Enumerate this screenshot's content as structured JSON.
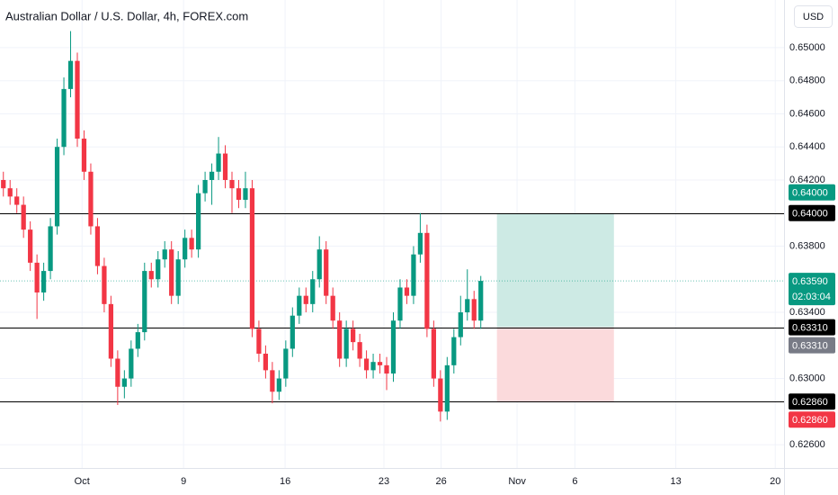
{
  "chart_data": {
    "type": "candlestick",
    "title": "Australian Dollar / U.S. Dollar, 4h, FOREX.com",
    "currency": "USD",
    "up_color": "#089981",
    "down_color": "#f23645",
    "x": [
      0,
      1,
      2,
      3,
      4,
      5,
      6,
      7,
      8,
      9,
      10,
      11,
      12,
      13,
      14,
      15,
      16,
      17,
      18,
      19,
      20,
      21,
      22,
      23,
      24,
      25,
      26,
      27,
      28,
      29,
      30,
      31,
      32,
      33,
      34,
      35,
      36,
      37,
      38,
      39,
      40,
      41,
      42,
      43,
      44,
      45,
      46,
      47,
      48,
      49,
      50,
      51,
      52,
      53,
      54,
      55,
      56,
      57,
      58,
      59,
      60,
      61,
      62,
      63,
      64,
      65,
      66,
      67,
      68,
      69,
      70,
      71
    ],
    "open": [
      0.642,
      0.6415,
      0.641,
      0.6405,
      0.639,
      0.637,
      0.6352,
      0.6365,
      0.6392,
      0.644,
      0.6475,
      0.6492,
      0.6445,
      0.6425,
      0.6392,
      0.6368,
      0.6345,
      0.6312,
      0.6295,
      0.63,
      0.6318,
      0.6328,
      0.6365,
      0.636,
      0.6372,
      0.6378,
      0.635,
      0.6372,
      0.6385,
      0.6378,
      0.6412,
      0.642,
      0.6425,
      0.6436,
      0.642,
      0.6415,
      0.6408,
      0.6415,
      0.633,
      0.6315,
      0.6305,
      0.6292,
      0.63,
      0.6318,
      0.6338,
      0.635,
      0.6345,
      0.636,
      0.6378,
      0.635,
      0.6335,
      0.6312,
      0.633,
      0.6322,
      0.6312,
      0.6305,
      0.631,
      0.6308,
      0.6303,
      0.6335,
      0.6355,
      0.635,
      0.6375,
      0.6388,
      0.633,
      0.63,
      0.628,
      0.6308,
      0.6325,
      0.634,
      0.6348,
      0.6335
    ],
    "high": [
      0.6425,
      0.642,
      0.6415,
      0.641,
      0.6395,
      0.6375,
      0.637,
      0.6397,
      0.6445,
      0.6482,
      0.651,
      0.6497,
      0.645,
      0.643,
      0.6397,
      0.6373,
      0.635,
      0.6317,
      0.6305,
      0.6323,
      0.6333,
      0.637,
      0.637,
      0.6377,
      0.6383,
      0.6383,
      0.6377,
      0.639,
      0.639,
      0.6417,
      0.6425,
      0.643,
      0.6446,
      0.6441,
      0.6425,
      0.642,
      0.6425,
      0.642,
      0.6335,
      0.632,
      0.631,
      0.6305,
      0.6323,
      0.6343,
      0.6355,
      0.6355,
      0.6365,
      0.6386,
      0.6383,
      0.6355,
      0.634,
      0.6335,
      0.6335,
      0.6327,
      0.6317,
      0.6315,
      0.6315,
      0.6313,
      0.634,
      0.636,
      0.636,
      0.638,
      0.64,
      0.6393,
      0.6335,
      0.6305,
      0.6313,
      0.633,
      0.635,
      0.6366,
      0.6353,
      0.6362
    ],
    "low": [
      0.641,
      0.6405,
      0.64,
      0.6385,
      0.6365,
      0.6336,
      0.6347,
      0.636,
      0.6387,
      0.6435,
      0.647,
      0.644,
      0.642,
      0.6387,
      0.6363,
      0.634,
      0.6307,
      0.6284,
      0.6288,
      0.6295,
      0.6313,
      0.6323,
      0.6355,
      0.6355,
      0.6367,
      0.6345,
      0.6345,
      0.6367,
      0.6373,
      0.6373,
      0.6407,
      0.6405,
      0.642,
      0.6415,
      0.64,
      0.6403,
      0.6403,
      0.6325,
      0.631,
      0.63,
      0.6285,
      0.6287,
      0.6295,
      0.6313,
      0.6333,
      0.634,
      0.634,
      0.6355,
      0.6345,
      0.633,
      0.6307,
      0.6307,
      0.6317,
      0.6307,
      0.63,
      0.63,
      0.6303,
      0.6293,
      0.6298,
      0.633,
      0.6345,
      0.6345,
      0.637,
      0.6325,
      0.6295,
      0.6274,
      0.6275,
      0.6303,
      0.632,
      0.6335,
      0.633,
      0.633
    ],
    "close": [
      0.6415,
      0.641,
      0.6405,
      0.639,
      0.637,
      0.6352,
      0.6365,
      0.6392,
      0.644,
      0.6475,
      0.6492,
      0.6445,
      0.6425,
      0.6392,
      0.6368,
      0.6345,
      0.6312,
      0.6295,
      0.63,
      0.6318,
      0.6328,
      0.6365,
      0.636,
      0.6372,
      0.6378,
      0.635,
      0.6372,
      0.6385,
      0.6378,
      0.6412,
      0.642,
      0.6425,
      0.6436,
      0.642,
      0.6415,
      0.6408,
      0.6415,
      0.633,
      0.6315,
      0.6305,
      0.6292,
      0.63,
      0.6318,
      0.6338,
      0.635,
      0.6345,
      0.636,
      0.6378,
      0.635,
      0.6335,
      0.6312,
      0.633,
      0.6322,
      0.6312,
      0.6305,
      0.631,
      0.6308,
      0.6303,
      0.6335,
      0.6355,
      0.635,
      0.6375,
      0.6388,
      0.633,
      0.63,
      0.628,
      0.6308,
      0.6325,
      0.634,
      0.6348,
      0.6335,
      0.6359
    ],
    "xlim": [
      -0.5,
      116.1
    ],
    "xticks": [
      {
        "value": 11.7,
        "label": "Oct"
      },
      {
        "value": 26.8,
        "label": "9"
      },
      {
        "value": 41.9,
        "label": "16"
      },
      {
        "value": 56.6,
        "label": "23"
      },
      {
        "value": 65.1,
        "label": "26"
      },
      {
        "value": 76.4,
        "label": "Nov"
      },
      {
        "value": 85.0,
        "label": "6"
      },
      {
        "value": 100.0,
        "label": "13"
      },
      {
        "value": 114.8,
        "label": "20"
      }
    ],
    "ylim": [
      0.62459,
      0.65288
    ],
    "yticks": [
      {
        "value": 0.626,
        "label": "0.62600"
      },
      {
        "value": 0.63,
        "label": "0.63000"
      },
      {
        "value": 0.634,
        "label": "0.63400"
      },
      {
        "value": 0.638,
        "label": "0.63800"
      },
      {
        "value": 0.642,
        "label": "0.64200"
      },
      {
        "value": 0.644,
        "label": "0.64400"
      },
      {
        "value": 0.646,
        "label": "0.64600"
      },
      {
        "value": 0.648,
        "label": "0.64800"
      },
      {
        "value": 0.65,
        "label": "0.65000"
      }
    ],
    "grid": true,
    "hlines": [
      0.64,
      0.6331,
      0.6286
    ],
    "last_price": 0.6359,
    "position": {
      "xlim": [
        73.4,
        90.8
      ],
      "target": 0.64,
      "entry": 0.6331,
      "stop": 0.6286,
      "target_color": "#cdeae4",
      "stop_color": "#fbdadc"
    },
    "price_tags": [
      {
        "value": 0.64,
        "label": "0.64000",
        "color": "#089981"
      },
      {
        "value": 0.64,
        "label": "0.64000",
        "color": "#000000"
      },
      {
        "value": 0.6359,
        "label": "0.63590",
        "color": "#089981",
        "sublabel": "02:03:04"
      },
      {
        "value": 0.6331,
        "label": "0.63310",
        "color": "#000000"
      },
      {
        "value": 0.6331,
        "label": "0.63310",
        "color": "#787b86"
      },
      {
        "value": 0.6286,
        "label": "0.62860",
        "color": "#000000"
      },
      {
        "value": 0.6286,
        "label": "0.62860",
        "color": "#f23645"
      }
    ]
  }
}
